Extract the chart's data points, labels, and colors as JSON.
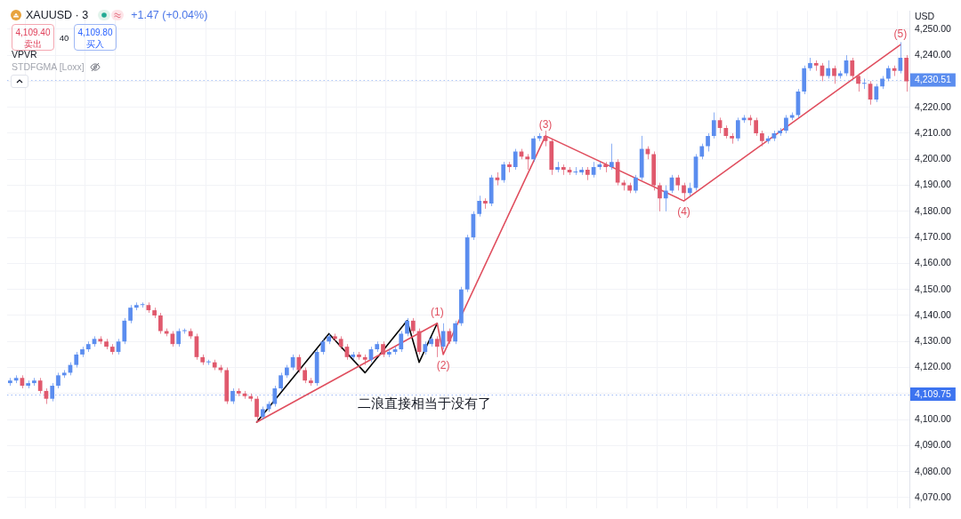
{
  "chart_data": {
    "type": "candlestick",
    "title": "XAUUSD · 3",
    "subtitle": "+1.47 (+0.04%)",
    "ylabel": "USD",
    "annotations": [
      "4,109.40",
      "卖出",
      "40",
      "4,109.80",
      "买入",
      "VPVR",
      "STDFGMA [Loxx]",
      "二浪直接相当于没有了",
      {
        "text": "(1)",
        "y": 4137
      },
      {
        "text": "(2)",
        "y": 4125
      },
      {
        "text": "(3)",
        "y": 4209
      },
      {
        "text": "(4)",
        "y": 4184
      },
      {
        "text": "(5)",
        "y": 4244
      }
    ],
    "categories": [
      null,
      null,
      null,
      null,
      null,
      null,
      null,
      null,
      null,
      null,
      null,
      null,
      null,
      null,
      null,
      null,
      null,
      null,
      null,
      null,
      null,
      null,
      null,
      null,
      null,
      null,
      null,
      null,
      null,
      null,
      null,
      null,
      null,
      null,
      null,
      null,
      null,
      null,
      null,
      null,
      null,
      null,
      null,
      null,
      null,
      null,
      null,
      null,
      null,
      null,
      null,
      null,
      null,
      null,
      null,
      null,
      null,
      null,
      null,
      null,
      null,
      null,
      null,
      null,
      null,
      null,
      null,
      null,
      null,
      null,
      null,
      null,
      null,
      null,
      null,
      null,
      null,
      null,
      null,
      null,
      null,
      null,
      null,
      null,
      null,
      null,
      null,
      null,
      null,
      null,
      null,
      null,
      null,
      null,
      null,
      null,
      null,
      null,
      null,
      null,
      null,
      null,
      null,
      null,
      null,
      null,
      null,
      null,
      null,
      null,
      null,
      null,
      null,
      null,
      null,
      null,
      null,
      null,
      null,
      null,
      null,
      null,
      null,
      null,
      null,
      null,
      null,
      null,
      null,
      null,
      null,
      null,
      null,
      null,
      null,
      null,
      null,
      null,
      null,
      null,
      null,
      null,
      null,
      null,
      null,
      null,
      null,
      null,
      null,
      null
    ],
    "ohlc": [
      [
        4114,
        4116,
        4113,
        4115
      ],
      [
        4115,
        4117,
        4114,
        4116
      ],
      [
        4116,
        4117,
        4112,
        4113
      ],
      [
        4113,
        4115,
        4112,
        4114
      ],
      [
        4114,
        4116,
        4113,
        4115
      ],
      [
        4115,
        4116,
        4110,
        4111
      ],
      [
        4111,
        4112,
        4106,
        4108
      ],
      [
        4108,
        4114,
        4107,
        4113
      ],
      [
        4113,
        4118,
        4112,
        4117
      ],
      [
        4117,
        4119,
        4116,
        4118
      ],
      [
        4118,
        4122,
        4117,
        4121
      ],
      [
        4121,
        4126,
        4120,
        4125
      ],
      [
        4125,
        4128,
        4124,
        4127
      ],
      [
        4127,
        4130,
        4126,
        4129
      ],
      [
        4129,
        4132,
        4128,
        4131
      ],
      [
        4131,
        4132,
        4129,
        4130
      ],
      [
        4130,
        4131,
        4127,
        4128
      ],
      [
        4128,
        4129,
        4125,
        4126
      ],
      [
        4126,
        4131,
        4125,
        4130
      ],
      [
        4130,
        4139,
        4129,
        4138
      ],
      [
        4138,
        4144,
        4137,
        4143
      ],
      [
        4143,
        4145,
        4142,
        4144
      ],
      [
        4144,
        4145,
        4143,
        4144
      ],
      [
        4144,
        4145,
        4141,
        4142
      ],
      [
        4142,
        4143,
        4139,
        4140
      ],
      [
        4140,
        4141,
        4133,
        4134
      ],
      [
        4134,
        4135,
        4132,
        4133
      ],
      [
        4133,
        4134,
        4128,
        4129
      ],
      [
        4129,
        4135,
        4128,
        4134
      ],
      [
        4134,
        4135,
        4133,
        4134
      ],
      [
        4134,
        4135,
        4131,
        4132
      ],
      [
        4132,
        4133,
        4123,
        4124
      ],
      [
        4124,
        4125,
        4121,
        4122
      ],
      [
        4122,
        4123,
        4121,
        4122
      ],
      [
        4122,
        4123,
        4119,
        4120
      ],
      [
        4120,
        4121,
        4118,
        4119
      ],
      [
        4119,
        4120,
        4106,
        4107
      ],
      [
        4107,
        4112,
        4106,
        4111
      ],
      [
        4111,
        4112,
        4109,
        4110
      ],
      [
        4110,
        4111,
        4108,
        4109
      ],
      [
        4109,
        4110,
        4107,
        4108
      ],
      [
        4108,
        4109,
        4099,
        4101
      ],
      [
        4101,
        4105,
        4100,
        4104
      ],
      [
        4104,
        4107,
        4103,
        4106
      ],
      [
        4106,
        4113,
        4105,
        4112
      ],
      [
        4112,
        4118,
        4111,
        4117
      ],
      [
        4117,
        4121,
        4116,
        4120
      ],
      [
        4120,
        4125,
        4119,
        4124
      ],
      [
        4124,
        4125,
        4118,
        4119
      ],
      [
        4119,
        4120,
        4114,
        4115
      ],
      [
        4115,
        4116,
        4113,
        4114
      ],
      [
        4114,
        4127,
        4113,
        4126
      ],
      [
        4126,
        4131,
        4125,
        4130
      ],
      [
        4130,
        4133,
        4129,
        4132
      ],
      [
        4132,
        4133,
        4130,
        4131
      ],
      [
        4131,
        4132,
        4127,
        4128
      ],
      [
        4128,
        4129,
        4123,
        4124
      ],
      [
        4124,
        4126,
        4123,
        4125
      ],
      [
        4125,
        4126,
        4123,
        4124
      ],
      [
        4124,
        4125,
        4121,
        4123
      ],
      [
        4123,
        4128,
        4122,
        4127
      ],
      [
        4127,
        4130,
        4126,
        4129
      ],
      [
        4129,
        4130,
        4124,
        4125
      ],
      [
        4125,
        4127,
        4124,
        4126
      ],
      [
        4126,
        4128,
        4125,
        4127
      ],
      [
        4127,
        4134,
        4126,
        4133
      ],
      [
        4133,
        4139,
        4132,
        4138
      ],
      [
        4138,
        4139,
        4133,
        4134
      ],
      [
        4134,
        4135,
        4125,
        4126
      ],
      [
        4126,
        4130,
        4125,
        4129
      ],
      [
        4129,
        4132,
        4128,
        4131
      ],
      [
        4131,
        4132,
        4124,
        4128
      ],
      [
        4128,
        4137,
        4127,
        4134
      ],
      [
        4134,
        4135,
        4129,
        4130
      ],
      [
        4130,
        4138,
        4129,
        4137
      ],
      [
        4137,
        4151,
        4136,
        4150
      ],
      [
        4150,
        4171,
        4149,
        4170
      ],
      [
        4170,
        4180,
        4169,
        4179
      ],
      [
        4179,
        4186,
        4178,
        4184
      ],
      [
        4184,
        4185,
        4181,
        4183
      ],
      [
        4183,
        4194,
        4182,
        4193
      ],
      [
        4193,
        4195,
        4190,
        4192
      ],
      [
        4192,
        4199,
        4191,
        4198
      ],
      [
        4198,
        4199,
        4195,
        4197
      ],
      [
        4197,
        4204,
        4196,
        4203
      ],
      [
        4203,
        4204,
        4200,
        4201
      ],
      [
        4201,
        4202,
        4196,
        4200
      ],
      [
        4200,
        4209,
        4199,
        4208
      ],
      [
        4208,
        4210,
        4207,
        4209
      ],
      [
        4209,
        4211,
        4205,
        4207
      ],
      [
        4207,
        4208,
        4194,
        4196
      ],
      [
        4196,
        4199,
        4195,
        4197
      ],
      [
        4197,
        4198,
        4194,
        4196
      ],
      [
        4196,
        4197,
        4194,
        4195
      ],
      [
        4195,
        4197,
        4194,
        4195
      ],
      [
        4195,
        4197,
        4194,
        4196
      ],
      [
        4196,
        4197,
        4192,
        4194
      ],
      [
        4194,
        4199,
        4193,
        4197
      ],
      [
        4197,
        4199,
        4196,
        4198
      ],
      [
        4198,
        4199,
        4195,
        4197
      ],
      [
        4197,
        4206,
        4196,
        4199
      ],
      [
        4199,
        4200,
        4190,
        4191
      ],
      [
        4191,
        4192,
        4188,
        4190
      ],
      [
        4190,
        4191,
        4187,
        4188
      ],
      [
        4188,
        4194,
        4187,
        4193
      ],
      [
        4193,
        4209,
        4192,
        4204
      ],
      [
        4204,
        4205,
        4200,
        4202
      ],
      [
        4202,
        4203,
        4188,
        4190
      ],
      [
        4190,
        4191,
        4180,
        4185
      ],
      [
        4185,
        4190,
        4180,
        4188
      ],
      [
        4188,
        4194,
        4187,
        4193
      ],
      [
        4193,
        4194,
        4188,
        4190
      ],
      [
        4190,
        4191,
        4184,
        4187
      ],
      [
        4187,
        4191,
        4186,
        4189
      ],
      [
        4189,
        4202,
        4188,
        4201
      ],
      [
        4201,
        4206,
        4200,
        4205
      ],
      [
        4205,
        4210,
        4203,
        4209
      ],
      [
        4209,
        4218,
        4208,
        4215
      ],
      [
        4215,
        4216,
        4210,
        4212
      ],
      [
        4212,
        4213,
        4208,
        4209
      ],
      [
        4209,
        4210,
        4206,
        4208
      ],
      [
        4208,
        4216,
        4207,
        4215
      ],
      [
        4215,
        4217,
        4214,
        4216
      ],
      [
        4216,
        4217,
        4213,
        4215
      ],
      [
        4215,
        4216,
        4209,
        4210
      ],
      [
        4210,
        4211,
        4205,
        4207
      ],
      [
        4207,
        4209,
        4206,
        4208
      ],
      [
        4208,
        4211,
        4207,
        4210
      ],
      [
        4210,
        4212,
        4209,
        4211
      ],
      [
        4211,
        4217,
        4210,
        4216
      ],
      [
        4216,
        4218,
        4215,
        4217
      ],
      [
        4217,
        4227,
        4216,
        4226
      ],
      [
        4226,
        4236,
        4225,
        4235
      ],
      [
        4235,
        4239,
        4234,
        4237
      ],
      [
        4237,
        4238,
        4234,
        4236
      ],
      [
        4236,
        4237,
        4230,
        4232
      ],
      [
        4232,
        4238,
        4231,
        4235
      ],
      [
        4235,
        4236,
        4229,
        4232
      ],
      [
        4232,
        4234,
        4231,
        4233
      ],
      [
        4233,
        4240,
        4232,
        4238
      ],
      [
        4238,
        4239,
        4231,
        4232
      ],
      [
        4232,
        4233,
        4226,
        4229
      ],
      [
        4229,
        4231,
        4227,
        4229
      ],
      [
        4229,
        4230,
        4221,
        4223
      ],
      [
        4223,
        4229,
        4222,
        4228
      ],
      [
        4228,
        4232,
        4227,
        4231
      ],
      [
        4231,
        4236,
        4230,
        4235
      ],
      [
        4235,
        4236,
        4232,
        4234
      ],
      [
        4234,
        4245,
        4233,
        4239
      ],
      [
        4239,
        4240,
        4226,
        4230
      ]
    ],
    "colors": [
      "#5b8def",
      "#5b8def",
      "#e0596d",
      "#5b8def",
      "#5b8def",
      "#e0596d",
      "#e0596d",
      "#5b8def",
      "#5b8def",
      "#5b8def",
      "#5b8def",
      "#5b8def",
      "#5b8def",
      "#5b8def",
      "#5b8def",
      "#e0596d",
      "#e0596d",
      "#e0596d",
      "#5b8def",
      "#5b8def",
      "#5b8def",
      "#5b8def",
      "#5b8def",
      "#e0596d",
      "#e0596d",
      "#e0596d",
      "#e0596d",
      "#e0596d",
      "#5b8def",
      "#5b8def",
      "#e0596d",
      "#e0596d",
      "#e0596d",
      "#5b8def",
      "#e0596d",
      "#e0596d",
      "#e0596d",
      "#5b8def",
      "#e0596d",
      "#e0596d",
      "#e0596d",
      "#e0596d",
      "#5b8def",
      "#5b8def",
      "#5b8def",
      "#5b8def",
      "#5b8def",
      "#5b8def",
      "#e0596d",
      "#e0596d",
      "#e0596d",
      "#5b8def",
      "#5b8def",
      "#5b8def",
      "#e0596d",
      "#e0596d",
      "#e0596d",
      "#5b8def",
      "#e0596d",
      "#e0596d",
      "#5b8def",
      "#5b8def",
      "#e0596d",
      "#5b8def",
      "#5b8def",
      "#5b8def",
      "#5b8def",
      "#e0596d",
      "#e0596d",
      "#5b8def",
      "#5b8def",
      "#e0596d",
      "#5b8def",
      "#e0596d",
      "#5b8def",
      "#5b8def",
      "#5b8def",
      "#5b8def",
      "#5b8def",
      "#e0596d",
      "#5b8def",
      "#e0596d",
      "#5b8def",
      "#e0596d",
      "#5b8def",
      "#e0596d",
      "#e0596d",
      "#5b8def",
      "#5b8def",
      "#e0596d",
      "#e0596d",
      "#5b8def",
      "#e0596d",
      "#e0596d",
      "#5b8def",
      "#5b8def",
      "#e0596d",
      "#5b8def",
      "#5b8def",
      "#e0596d",
      "#5b8def",
      "#e0596d",
      "#e0596d",
      "#e0596d",
      "#5b8def",
      "#5b8def",
      "#e0596d",
      "#e0596d",
      "#e0596d",
      "#5b8def",
      "#5b8def",
      "#e0596d",
      "#e0596d",
      "#5b8def",
      "#5b8def",
      "#5b8def",
      "#5b8def",
      "#5b8def",
      "#e0596d",
      "#e0596d",
      "#e0596d",
      "#5b8def",
      "#5b8def",
      "#e0596d",
      "#e0596d",
      "#e0596d",
      "#5b8def",
      "#5b8def",
      "#5b8def",
      "#5b8def",
      "#5b8def",
      "#5b8def",
      "#5b8def",
      "#5b8def",
      "#e0596d",
      "#e0596d",
      "#5b8def",
      "#e0596d",
      "#5b8def",
      "#5b8def",
      "#e0596d",
      "#e0596d",
      "#5b8def",
      "#e0596d",
      "#5b8def",
      "#5b8def",
      "#5b8def",
      "#e0596d",
      "#5b8def",
      "#e0596d"
    ],
    "series": [
      {
        "type": "line",
        "color": "#e04f5f",
        "values": [
          null,
          null,
          null,
          null,
          null,
          null,
          null,
          null,
          null,
          null,
          null,
          null,
          null,
          null,
          null,
          null,
          null,
          null,
          null,
          null,
          null,
          null,
          null,
          null,
          null,
          null,
          null,
          null,
          null,
          null,
          null,
          null,
          null,
          null,
          null,
          null,
          null,
          null,
          null,
          null,
          null,
          4099,
          null,
          null,
          null,
          null,
          null,
          null,
          null,
          null,
          null,
          null,
          null,
          null,
          null,
          null,
          null,
          null,
          null,
          null,
          null,
          null,
          null,
          null,
          null,
          null,
          null,
          null,
          null,
          null,
          null,
          4137,
          4125,
          null,
          null,
          null,
          null,
          null,
          null,
          null,
          null,
          null,
          null,
          null,
          null,
          null,
          null,
          null,
          null,
          4209,
          null,
          null,
          null,
          null,
          null,
          null,
          null,
          null,
          null,
          null,
          null,
          null,
          null,
          null,
          null,
          null,
          null,
          null,
          null,
          null,
          null,
          null,
          4184,
          null,
          null,
          null,
          null,
          null,
          null,
          null,
          null,
          null,
          null,
          null,
          null,
          null,
          null,
          null,
          null,
          null,
          null,
          null,
          null,
          null,
          null,
          null,
          null,
          null,
          null,
          null,
          null,
          null,
          null,
          null,
          null,
          null,
          null,
          null,
          4244,
          null
        ]
      },
      {
        "type": "line",
        "color": "#000000",
        "values": [
          null,
          null,
          null,
          null,
          null,
          null,
          null,
          null,
          null,
          null,
          null,
          null,
          null,
          null,
          null,
          null,
          null,
          null,
          null,
          null,
          null,
          null,
          null,
          null,
          null,
          null,
          null,
          null,
          null,
          null,
          null,
          null,
          null,
          null,
          null,
          null,
          null,
          null,
          null,
          null,
          null,
          4099,
          null,
          null,
          null,
          null,
          null,
          null,
          null,
          null,
          null,
          null,
          null,
          4133,
          null,
          null,
          null,
          null,
          null,
          4118,
          null,
          null,
          null,
          null,
          null,
          null,
          4138,
          null,
          4122,
          null,
          null,
          4137,
          null,
          null,
          null,
          null,
          null,
          null,
          null,
          null,
          null,
          null,
          null,
          null,
          null,
          null,
          null,
          null,
          null,
          null,
          null,
          null,
          null,
          null,
          null,
          null,
          null,
          null,
          null,
          null,
          null,
          null,
          null,
          null,
          null,
          null,
          null,
          null,
          null,
          null,
          null,
          null,
          null,
          null,
          null,
          null,
          null,
          null,
          null,
          null,
          null,
          null,
          null,
          null,
          null,
          null,
          null,
          null,
          null,
          null,
          null,
          null,
          null,
          null,
          null,
          null,
          null,
          null,
          null,
          null,
          null,
          null,
          null,
          null,
          null,
          null,
          null,
          null,
          null,
          null
        ]
      }
    ],
    "ylim": [
      4066,
      4257
    ],
    "yticks": [
      {
        "value": 4070,
        "label": "4,070.00"
      },
      {
        "value": 4080,
        "label": "4,080.00"
      },
      {
        "value": 4090,
        "label": "4,090.00"
      },
      {
        "value": 4100,
        "label": "4,100.00"
      },
      {
        "value": 4110,
        "label": null
      },
      {
        "value": 4120,
        "label": "4,120.00"
      },
      {
        "value": 4130,
        "label": "4,130.00"
      },
      {
        "value": 4140,
        "label": "4,140.00"
      },
      {
        "value": 4150,
        "label": "4,150.00"
      },
      {
        "value": 4160,
        "label": "4,160.00"
      },
      {
        "value": 4170,
        "label": "4,170.00"
      },
      {
        "value": 4180,
        "label": "4,180.00"
      },
      {
        "value": 4190,
        "label": "4,190.00"
      },
      {
        "value": 4200,
        "label": "4,200.00"
      },
      {
        "value": 4210,
        "label": "4,210.00"
      },
      {
        "value": 4220,
        "label": "4,220.00"
      },
      {
        "value": 4230,
        "label": null
      },
      {
        "value": 4240,
        "label": "4,240.00"
      },
      {
        "value": 4250,
        "label": "4,250.00"
      }
    ],
    "grid": true,
    "tick_labels": "y",
    "ref_lines": [
      {
        "axis": "y",
        "value": 4109.75,
        "label": "4,109.75",
        "color": "#3d74f0",
        "line_style": "dotted"
      },
      {
        "axis": "y",
        "value": 4230.51,
        "label": "4,230.51",
        "color": "#5b8def",
        "line_style": "dotted"
      }
    ]
  }
}
